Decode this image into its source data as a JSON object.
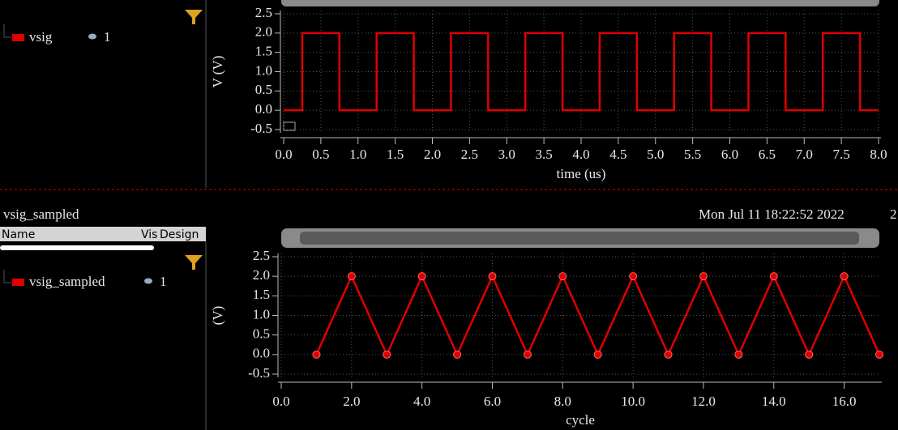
{
  "ui": {
    "top_signal": {
      "name": "vsig",
      "vis": "1"
    },
    "bottom_title": "vsig_sampled",
    "timestamp": "Mon Jul 11 18:22:52 2022",
    "timestamp_cut": "2",
    "columns": [
      "Name",
      "Vis",
      "Design"
    ],
    "bottom_signal": {
      "name": "vsig_sampled",
      "vis": "1"
    }
  },
  "chart_data": [
    {
      "type": "line",
      "ylabel": "V (V)",
      "xlabel": "time (us)",
      "color": "#e00000",
      "grid": true,
      "x": [
        0,
        0.25,
        0.25,
        0.75,
        0.75,
        1.25,
        1.25,
        1.75,
        1.75,
        2.25,
        2.25,
        2.75,
        2.75,
        3.25,
        3.25,
        3.75,
        3.75,
        4.25,
        4.25,
        4.75,
        4.75,
        5.25,
        5.25,
        5.75,
        5.75,
        6.25,
        6.25,
        6.75,
        6.75,
        7.25,
        7.25,
        7.75,
        7.75,
        8
      ],
      "values": [
        0,
        0,
        2,
        2,
        0,
        0,
        2,
        2,
        0,
        0,
        2,
        2,
        0,
        0,
        2,
        2,
        0,
        0,
        2,
        2,
        0,
        0,
        2,
        2,
        0,
        0,
        2,
        2,
        0,
        0,
        2,
        2,
        0,
        0
      ],
      "xlim": [
        0,
        8
      ],
      "ylim": [
        -0.5,
        2.5
      ],
      "xticks": [
        {
          "value": 0,
          "label": "0.0"
        },
        0.5,
        {
          "value": 1,
          "label": "1.0"
        },
        1.5,
        {
          "value": 2,
          "label": "2.0"
        },
        2.5,
        {
          "value": 3,
          "label": "3.0"
        },
        3.5,
        {
          "value": 4,
          "label": "4.0"
        },
        4.5,
        {
          "value": 5,
          "label": "5.0"
        },
        5.5,
        {
          "value": 6,
          "label": "6.0"
        },
        6.5,
        {
          "value": 7,
          "label": "7.0"
        },
        7.5,
        {
          "value": 8,
          "label": "8.0"
        }
      ],
      "yticks": [
        -0.5,
        {
          "value": 0,
          "label": "0.0"
        },
        0.5,
        {
          "value": 1,
          "label": "1.0"
        },
        1.5,
        {
          "value": 2,
          "label": "2.0"
        },
        2.5
      ]
    },
    {
      "type": "line",
      "markers": true,
      "ylabel": "(V)",
      "xlabel": "cycle",
      "color": "#e00000",
      "grid": true,
      "x": [
        1,
        2,
        3,
        4,
        5,
        6,
        7,
        8,
        9,
        10,
        11,
        12,
        13,
        14,
        15,
        16,
        17
      ],
      "values": [
        0,
        2,
        0,
        2,
        0,
        2,
        0,
        2,
        0,
        2,
        0,
        2,
        0,
        2,
        0,
        2,
        0
      ],
      "xlim": [
        0,
        17
      ],
      "ylim": [
        -0.5,
        2.5
      ],
      "xticks": [
        {
          "value": 0,
          "label": "0.0"
        },
        {
          "value": 2,
          "label": "2.0"
        },
        {
          "value": 4,
          "label": "4.0"
        },
        {
          "value": 6,
          "label": "6.0"
        },
        {
          "value": 8,
          "label": "8.0"
        },
        {
          "value": 10,
          "label": "10.0"
        },
        {
          "value": 12,
          "label": "12.0"
        },
        {
          "value": 14,
          "label": "14.0"
        },
        {
          "value": 16,
          "label": "16.0"
        }
      ],
      "yticks": [
        -0.5,
        {
          "value": 0,
          "label": "0.0"
        },
        0.5,
        {
          "value": 1,
          "label": "1.0"
        },
        1.5,
        {
          "value": 2,
          "label": "2.0"
        },
        2.5
      ]
    }
  ]
}
